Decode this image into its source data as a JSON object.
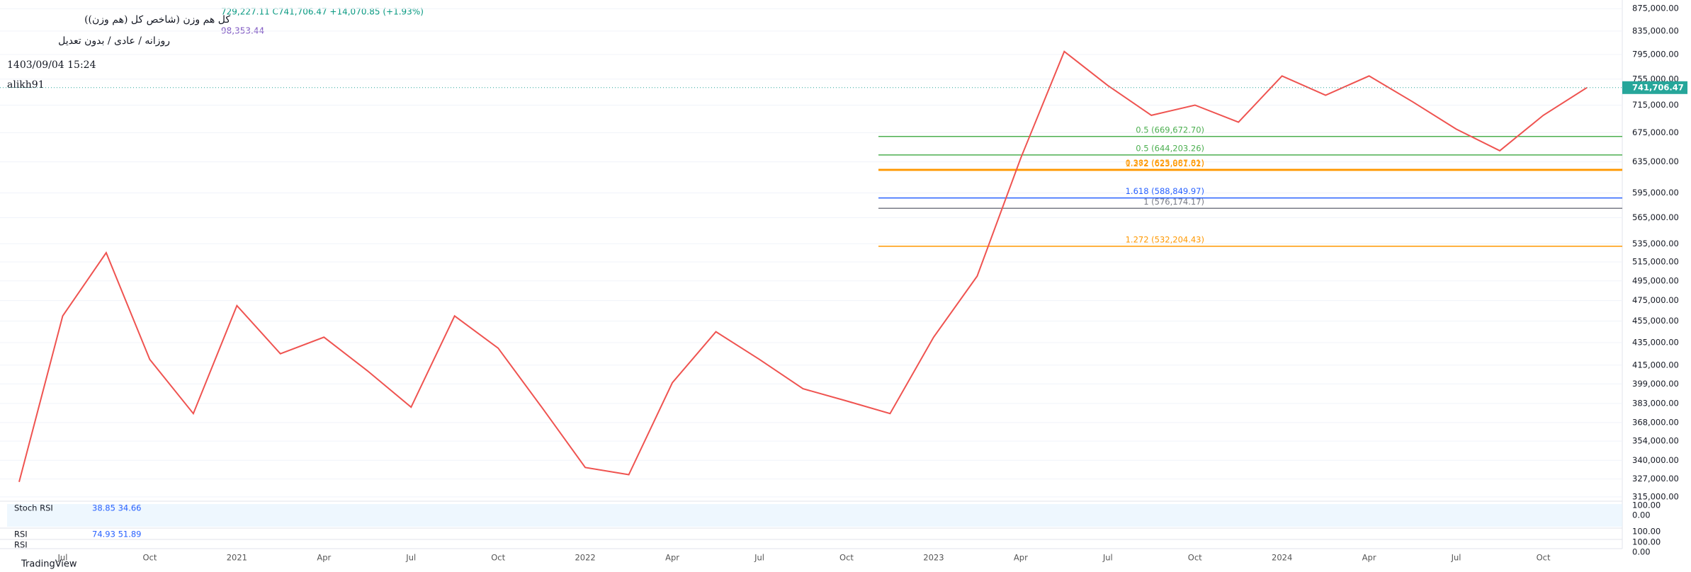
{
  "chart_data": {
    "type": "line",
    "log_scale": true,
    "title": "کل هم وزن (شاخص کل (هم وزن))",
    "subtitle": "روزانه / عادی / بدون تعدیل",
    "timestamp": "1403/09/04 15:24",
    "author": "alikh91",
    "ohlc_text": "729,227.11 C741,706.47 +14,070.85 (+1.93%)",
    "secondary_text": "98,353.44",
    "categories": [
      null,
      "Jul",
      null,
      "Oct",
      null,
      "2021",
      null,
      "Apr",
      null,
      "Jul",
      null,
      "Oct",
      null,
      "2022",
      null,
      "Apr",
      null,
      "Jul",
      null,
      "Oct",
      null,
      "2023",
      null,
      "Apr",
      null,
      "Jul",
      null,
      "Oct",
      null,
      "2024",
      null,
      "Apr",
      null,
      "Jul",
      null,
      "Oct",
      null
    ],
    "series": [
      {
        "name": "Close",
        "color": "#ef5350",
        "values": [
          325000,
          460000,
          525000,
          420000,
          375000,
          470000,
          425000,
          440000,
          410000,
          380000,
          460000,
          430000,
          380000,
          335000,
          330000,
          400000,
          445000,
          420000,
          395000,
          385000,
          375000,
          440000,
          500000,
          640000,
          800000,
          745000,
          700000,
          715000,
          690000,
          760000,
          730000,
          760000,
          720000,
          680000,
          650000,
          700000,
          741706.47
        ]
      }
    ],
    "last_price": {
      "value": 741706.47,
      "label": "741,706.47",
      "color": "#26a69a"
    },
    "ylim": [
      314000,
      891000
    ],
    "yticks": [
      {
        "value": 875000,
        "label": "875,000.00"
      },
      {
        "value": 835000,
        "label": "835,000.00"
      },
      {
        "value": 795000,
        "label": "795,000.00"
      },
      {
        "value": 755000,
        "label": "755,000.00"
      },
      {
        "value": 715000,
        "label": "715,000.00"
      },
      {
        "value": 675000,
        "label": "675,000.00"
      },
      {
        "value": 635000,
        "label": "635,000.00"
      },
      {
        "value": 595000,
        "label": "595,000.00"
      },
      {
        "value": 565000,
        "label": "565,000.00"
      },
      {
        "value": 535000,
        "label": "535,000.00"
      },
      {
        "value": 515000,
        "label": "515,000.00"
      },
      {
        "value": 495000,
        "label": "495,000.00"
      },
      {
        "value": 475000,
        "label": "475,000.00"
      },
      {
        "value": 455000,
        "label": "455,000.00"
      },
      {
        "value": 435000,
        "label": "435,000.00"
      },
      {
        "value": 415000,
        "label": "415,000.00"
      },
      {
        "value": 399000,
        "label": "399,000.00"
      },
      {
        "value": 383000,
        "label": "383,000.00"
      },
      {
        "value": 368000,
        "label": "368,000.00"
      },
      {
        "value": 354000,
        "label": "354,000.00"
      },
      {
        "value": 340000,
        "label": "340,000.00"
      },
      {
        "value": 327000,
        "label": "327,000.00"
      },
      {
        "value": 315000,
        "label": "315,000.00"
      }
    ],
    "levels": [
      {
        "value": 669672.7,
        "label": "0.5 (669,672.70)",
        "color": "#4caf50"
      },
      {
        "value": 644203.26,
        "label": "0.5 (644,203.26)",
        "color": "#4caf50"
      },
      {
        "value": 625087.81,
        "label": "0.382 (625,087.81)",
        "color": "#ff9800"
      },
      {
        "value": 623861.02,
        "label": "1.272 (623,861.02)",
        "color": "#ff9800"
      },
      {
        "value": 588849.97,
        "label": "1.618 (588,849.97)",
        "color": "#2962ff"
      },
      {
        "value": 576174.17,
        "label": "1 (576,174.17)",
        "color": "#787b86"
      },
      {
        "value": 532204.43,
        "label": "1.272 (532,204.43)",
        "color": "#ff9800"
      }
    ],
    "indicators": [
      {
        "name": "Stoch RSI",
        "values_text": "38.85  34.66",
        "ticks": [
          "100.00",
          "0.00"
        ]
      },
      {
        "name": "RSI",
        "values_text": "74.93  51.89",
        "ticks": [
          "100.00"
        ]
      },
      {
        "name": "RSI",
        "values_text": "",
        "ticks": [
          "100.00",
          "0.00"
        ]
      }
    ],
    "brand": "TradingView"
  }
}
